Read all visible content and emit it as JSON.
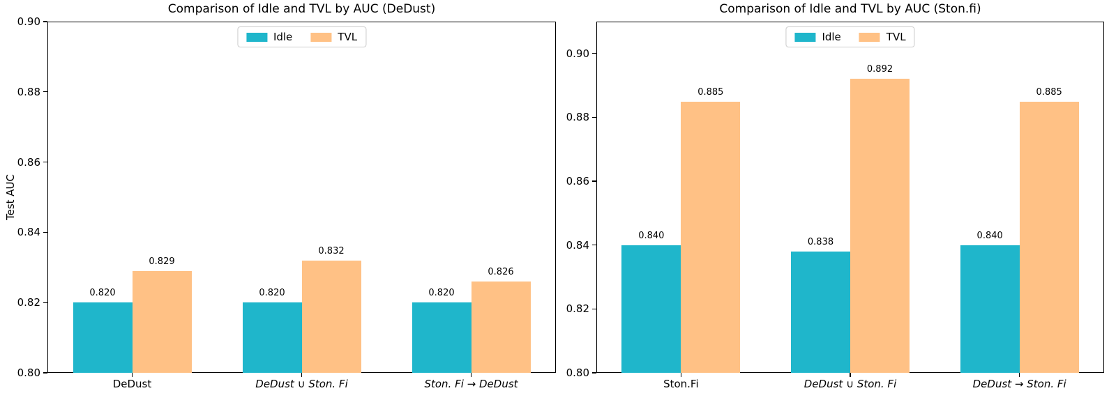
{
  "figure": {
    "background_color": "#ffffff",
    "idle_color": "#1fb6cb",
    "tvl_color": "#ffc185"
  },
  "chart_data": [
    {
      "type": "bar",
      "title": "Comparison of Idle and TVL by AUC (DeDust)",
      "ylabel": "Test AUC",
      "xlabel": "",
      "ylim": [
        0.8,
        0.9
      ],
      "yticks": [
        0.8,
        0.82,
        0.84,
        0.86,
        0.88,
        0.9
      ],
      "ytick_labels": [
        "0.80",
        "0.82",
        "0.84",
        "0.86",
        "0.88",
        "0.90"
      ],
      "grid": false,
      "legend_position": "upper center",
      "legend": [
        "Idle",
        "TVL"
      ],
      "categories": [
        "DeDust",
        "DeDust ∪ Ston. Fi",
        "Ston. Fi → DeDust"
      ],
      "categories_italic": [
        false,
        true,
        true
      ],
      "series": [
        {
          "name": "Idle",
          "color": "#1fb6cb",
          "values": [
            0.82,
            0.82,
            0.82
          ],
          "labels": [
            "0.820",
            "0.820",
            "0.820"
          ]
        },
        {
          "name": "TVL",
          "color": "#ffc185",
          "values": [
            0.829,
            0.832,
            0.826
          ],
          "labels": [
            "0.829",
            "0.832",
            "0.826"
          ]
        }
      ]
    },
    {
      "type": "bar",
      "title": "Comparison of Idle and TVL by AUC (Ston.fi)",
      "ylabel": "",
      "xlabel": "",
      "ylim": [
        0.8,
        0.91
      ],
      "yticks": [
        0.8,
        0.82,
        0.84,
        0.86,
        0.88,
        0.9
      ],
      "ytick_labels": [
        "0.80",
        "0.82",
        "0.84",
        "0.86",
        "0.88",
        "0.90"
      ],
      "grid": false,
      "legend_position": "upper center",
      "legend": [
        "Idle",
        "TVL"
      ],
      "categories": [
        "Ston.Fi",
        "DeDust ∪ Ston. Fi",
        "DeDust → Ston. Fi"
      ],
      "categories_italic": [
        false,
        true,
        true
      ],
      "series": [
        {
          "name": "Idle",
          "color": "#1fb6cb",
          "values": [
            0.84,
            0.838,
            0.84
          ],
          "labels": [
            "0.840",
            "0.838",
            "0.840"
          ]
        },
        {
          "name": "TVL",
          "color": "#ffc185",
          "values": [
            0.885,
            0.892,
            0.885
          ],
          "labels": [
            "0.885",
            "0.892",
            "0.885"
          ]
        }
      ]
    }
  ]
}
